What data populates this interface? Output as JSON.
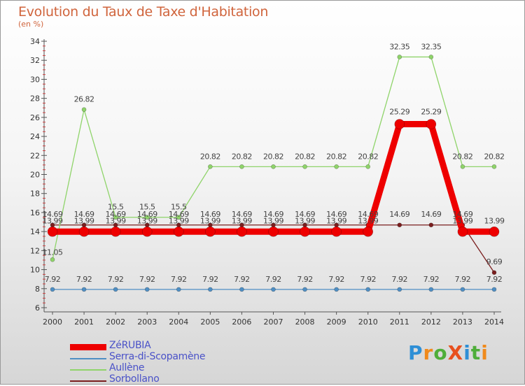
{
  "title": "Evolution du Taux de Taxe d'Habitation",
  "subtitle": "(en %)",
  "logo": {
    "text": "ProXiti",
    "letters": [
      "P",
      "r",
      "o",
      "X",
      "i",
      "t",
      "i"
    ],
    "colors": [
      "#2e8fd6",
      "#f08a1c",
      "#4fae3a",
      "#e8501e",
      "#2e8fd6",
      "#4fae3a",
      "#f08a1c"
    ]
  },
  "chart_data": {
    "type": "line",
    "title": "Evolution du Taux de Taxe d'Habitation",
    "ylabel": "(en %)",
    "xlabel": "",
    "x": [
      "2000",
      "2001",
      "2002",
      "2003",
      "2004",
      "2005",
      "2006",
      "2007",
      "2008",
      "2009",
      "2010",
      "2011",
      "2012",
      "2013",
      "2014"
    ],
    "ylim": [
      6,
      34
    ],
    "yticks": [
      6,
      8,
      10,
      12,
      14,
      16,
      18,
      20,
      22,
      24,
      26,
      28,
      30,
      32,
      34
    ],
    "grid": false,
    "legend_position": "bottom-left",
    "series": [
      {
        "name": "Sorbollano",
        "color": "#7a1e1e",
        "values": [
          14.69,
          14.69,
          14.69,
          14.69,
          14.69,
          14.69,
          14.69,
          14.69,
          14.69,
          14.69,
          14.69,
          14.69,
          14.69,
          14.69,
          9.69
        ],
        "labels": [
          "14.69",
          "14.69",
          "14.69",
          "14.69",
          "14.69",
          "14.69",
          "14.69",
          "14.69",
          "14.69",
          "14.69",
          "14.69",
          "14.69",
          "14.69",
          "14.69",
          "9.69"
        ]
      },
      {
        "name": "Serra-di-Scopamène",
        "color": "#4f8fc4",
        "values": [
          7.92,
          7.92,
          7.92,
          7.92,
          7.92,
          7.92,
          7.92,
          7.92,
          7.92,
          7.92,
          7.92,
          7.92,
          7.92,
          7.92,
          7.92
        ],
        "labels": [
          "7.92",
          "7.92",
          "7.92",
          "7.92",
          "7.92",
          "7.92",
          "7.92",
          "7.92",
          "7.92",
          "7.92",
          "7.92",
          "7.92",
          "7.92",
          "7.92",
          "7.92"
        ]
      },
      {
        "name": "Aullène",
        "color": "#8fd46a",
        "values": [
          11.05,
          26.82,
          15.5,
          15.5,
          15.5,
          20.82,
          20.82,
          20.82,
          20.82,
          20.82,
          20.82,
          32.35,
          32.35,
          20.82,
          20.82
        ],
        "labels": [
          "11.05",
          "26.82",
          "15.5",
          "15.5",
          "15.5",
          "20.82",
          "20.82",
          "20.82",
          "20.82",
          "20.82",
          "20.82",
          "32.35",
          "32.35",
          "20.82",
          "20.82"
        ]
      },
      {
        "name": "ZéRUBIA",
        "color": "#ee0000",
        "values": [
          13.99,
          13.99,
          13.99,
          13.99,
          13.99,
          13.99,
          13.99,
          13.99,
          13.99,
          13.99,
          13.99,
          25.29,
          25.29,
          13.99,
          13.99
        ],
        "labels": [
          "13.99",
          "13.99",
          "13.99",
          "13.99",
          "13.99",
          "13.99",
          "13.99",
          "13.99",
          "13.99",
          "13.99",
          "13.99",
          "25.29",
          "25.29",
          "13.99",
          "13.99"
        ]
      }
    ],
    "legend": [
      "ZéRUBIA",
      "Serra-di-Scopamène",
      "Aullène",
      "Sorbollano"
    ]
  }
}
